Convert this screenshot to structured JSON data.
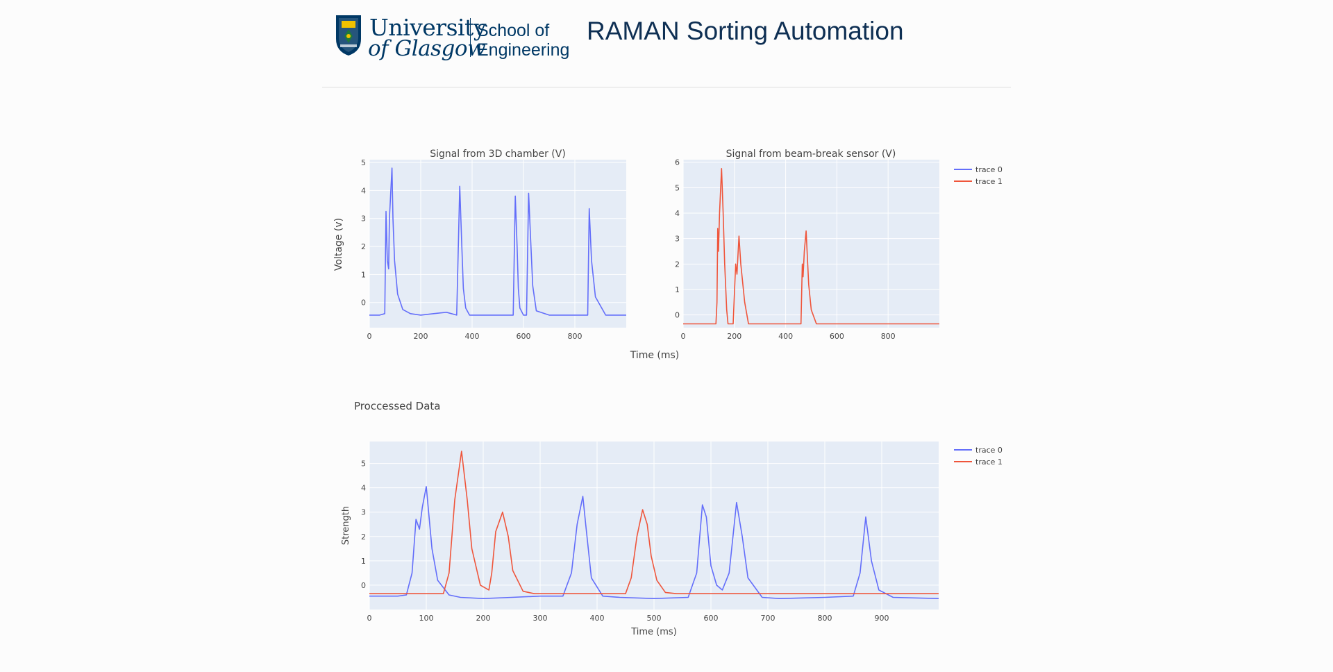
{
  "header": {
    "logo_line1": "University",
    "logo_line2": "of Glasgow",
    "logo_school_line1": "School of",
    "logo_school_line2": "Engineering",
    "title": "RAMAN Sorting Automation"
  },
  "colors": {
    "trace0": "#636efa",
    "trace1": "#ef553b",
    "plot_bg": "#e5ecf6",
    "text": "#444444"
  },
  "chart_data": [
    {
      "id": "raw3d",
      "type": "line",
      "title": "Signal from 3D chamber (V)",
      "xlabel": "Time (ms)",
      "ylabel": "Voltage (v)",
      "xlim": [
        0,
        1000
      ],
      "ylim": [
        -0.9,
        5.1
      ],
      "xticks": [
        0,
        200,
        400,
        600,
        800
      ],
      "yticks": [
        0,
        1,
        2,
        3,
        4,
        5
      ],
      "series": [
        {
          "name": "trace 0",
          "color": "#636efa",
          "x": [
            0,
            40,
            60,
            65,
            70,
            75,
            78,
            88,
            92,
            98,
            110,
            130,
            160,
            200,
            250,
            300,
            340,
            352,
            360,
            366,
            375,
            390,
            420,
            500,
            560,
            568,
            575,
            580,
            586,
            600,
            612,
            620,
            628,
            636,
            650,
            700,
            760,
            820,
            850,
            856,
            865,
            880,
            920,
            1000
          ],
          "y": [
            -0.45,
            -0.45,
            -0.4,
            3.25,
            1.5,
            1.2,
            3.0,
            4.8,
            3.0,
            1.5,
            0.3,
            -0.25,
            -0.4,
            -0.45,
            -0.4,
            -0.35,
            -0.45,
            4.15,
            2.0,
            0.5,
            -0.2,
            -0.45,
            -0.45,
            -0.45,
            -0.45,
            3.8,
            2.0,
            0.5,
            -0.2,
            -0.45,
            -0.45,
            3.9,
            2.2,
            0.6,
            -0.3,
            -0.45,
            -0.45,
            -0.45,
            -0.45,
            3.35,
            1.5,
            0.2,
            -0.45,
            -0.45
          ]
        }
      ]
    },
    {
      "id": "beam",
      "type": "line",
      "title": "Signal from beam-break sensor (V)",
      "xlabel": "",
      "ylabel": "",
      "xlim": [
        0,
        1000
      ],
      "ylim": [
        -0.5,
        6.1
      ],
      "xticks": [
        0,
        200,
        400,
        600,
        800
      ],
      "yticks": [
        0,
        1,
        2,
        3,
        4,
        5,
        6
      ],
      "series": [
        {
          "name": "trace 1",
          "color": "#ef553b",
          "x": [
            0,
            128,
            132,
            135,
            138,
            142,
            150,
            156,
            162,
            170,
            175,
            195,
            205,
            210,
            218,
            225,
            240,
            255,
            270,
            460,
            465,
            468,
            473,
            480,
            490,
            500,
            520,
            560,
            1000
          ],
          "y": [
            -0.35,
            -0.35,
            0.5,
            3.4,
            2.5,
            4.0,
            5.75,
            4.0,
            2.0,
            0.2,
            -0.35,
            -0.35,
            2.0,
            1.6,
            3.1,
            2.0,
            0.5,
            -0.35,
            -0.35,
            -0.35,
            2.0,
            1.5,
            2.5,
            3.3,
            1.2,
            0.2,
            -0.35,
            -0.35,
            -0.35
          ]
        }
      ]
    },
    {
      "id": "processed",
      "type": "line",
      "title": "Proccessed Data",
      "xlabel": "Time (ms)",
      "ylabel": "Strength",
      "xlim": [
        0,
        1000
      ],
      "ylim": [
        -1.0,
        5.9
      ],
      "xticks": [
        0,
        100,
        200,
        300,
        400,
        500,
        600,
        700,
        800,
        900
      ],
      "yticks": [
        0,
        1,
        2,
        3,
        4,
        5
      ],
      "legend_position": "top-right",
      "series": [
        {
          "name": "trace 0",
          "color": "#636efa",
          "x": [
            0,
            50,
            65,
            75,
            82,
            88,
            93,
            100,
            110,
            120,
            140,
            160,
            200,
            250,
            300,
            340,
            355,
            365,
            375,
            380,
            390,
            410,
            440,
            500,
            560,
            575,
            585,
            592,
            600,
            610,
            620,
            632,
            645,
            655,
            665,
            690,
            720,
            800,
            850,
            862,
            872,
            882,
            895,
            920,
            1000
          ],
          "y": [
            -0.45,
            -0.45,
            -0.4,
            0.5,
            2.7,
            2.3,
            3.2,
            4.05,
            1.5,
            0.2,
            -0.4,
            -0.5,
            -0.55,
            -0.5,
            -0.45,
            -0.45,
            0.5,
            2.5,
            3.65,
            2.5,
            0.3,
            -0.45,
            -0.5,
            -0.55,
            -0.5,
            0.5,
            3.3,
            2.8,
            0.8,
            0.0,
            -0.2,
            0.5,
            3.4,
            2.0,
            0.3,
            -0.5,
            -0.55,
            -0.5,
            -0.45,
            0.5,
            2.8,
            1.0,
            -0.2,
            -0.5,
            -0.55
          ]
        },
        {
          "name": "trace 1",
          "color": "#ef553b",
          "x": [
            0,
            130,
            140,
            150,
            162,
            172,
            180,
            195,
            210,
            215,
            222,
            234,
            244,
            252,
            270,
            290,
            300,
            450,
            460,
            470,
            480,
            488,
            495,
            505,
            520,
            540,
            1000
          ],
          "y": [
            -0.35,
            -0.35,
            0.5,
            3.5,
            5.5,
            3.5,
            1.5,
            0.0,
            -0.2,
            0.5,
            2.2,
            3.0,
            2.0,
            0.6,
            -0.25,
            -0.35,
            -0.35,
            -0.35,
            0.3,
            2.0,
            3.1,
            2.5,
            1.2,
            0.2,
            -0.3,
            -0.35,
            -0.35
          ]
        }
      ]
    }
  ],
  "legend_top": {
    "items": [
      "trace 0",
      "trace 1"
    ]
  },
  "legend_bottom": {
    "items": [
      "trace 0",
      "trace 1"
    ]
  }
}
